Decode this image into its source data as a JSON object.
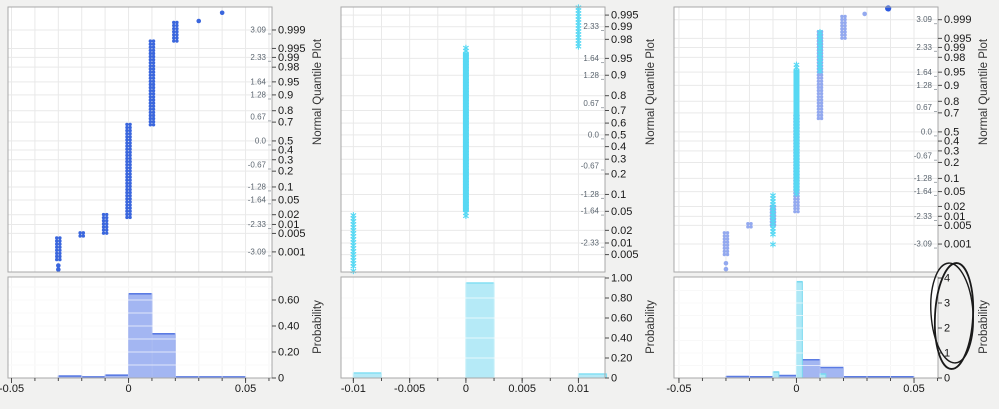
{
  "figure": {
    "background": "#f1f1f0",
    "plot_background": "#ffffff",
    "frame_color": "#a8a8a8",
    "grid_color": "#e9e9e9",
    "tick_color": "#4a4a4a",
    "label_color": "#161616",
    "z_label_color": "#5c6670",
    "title_color": "#333333"
  },
  "chart_data": [
    {
      "type": "scatter",
      "title": "Normal Quantile Plot",
      "hist_ylabel": "Probability",
      "xlim": [
        -0.0515,
        0.0613
      ],
      "zlim": [
        -3.65,
        3.73
      ],
      "x_tick_values": [
        -0.05,
        0,
        0.05
      ],
      "x_tick_labels": [
        "-0.05",
        "0",
        "0.05"
      ],
      "x_minor_step": 0.01,
      "prob_labels": [
        "0.999",
        "0.995",
        "0.99",
        "0.98",
        "0.95",
        "0.9",
        "0.8",
        "0.7",
        "0.5",
        "0.4",
        "0.3",
        "0.2",
        "0.1",
        "0.05",
        "0.02",
        "0.01",
        "0.005",
        "0.001"
      ],
      "prob_z": [
        3.09,
        2.576,
        2.326,
        2.054,
        1.645,
        1.282,
        0.842,
        0.524,
        0,
        -0.253,
        -0.524,
        -0.842,
        -1.282,
        -1.645,
        -2.054,
        -2.326,
        -2.576,
        -3.09
      ],
      "z_labels": [
        "3.09",
        "2.33",
        "1.64",
        "1.28",
        "0.67",
        "0.0",
        "-0.67",
        "-1.28",
        "-1.64",
        "-2.33",
        "-3.09"
      ],
      "z_values": [
        3.09,
        2.33,
        1.64,
        1.28,
        0.67,
        0,
        -0.67,
        -1.28,
        -1.64,
        -2.33,
        -3.09
      ],
      "series": [
        {
          "name": "blue-dots",
          "marker": "dot",
          "color": "#3a66dd",
          "columns": [
            {
              "x": 0.0,
              "z": [
                -2.18,
                0.46
              ]
            },
            {
              "x": 0.01,
              "z": [
                0.4,
                2.78
              ]
            },
            {
              "x": 0.02,
              "z": [
                2.72,
                3.3
              ]
            },
            {
              "x": -0.01,
              "z": [
                -2.62,
                -2.05
              ]
            },
            {
              "x": -0.02,
              "z": [
                -2.73,
                -2.56
              ]
            },
            {
              "x": -0.03,
              "z": [
                -3.37,
                -2.7
              ]
            }
          ],
          "points": [
            {
              "x": 0.03,
              "z": 3.34
            },
            {
              "x": 0.04,
              "z": 3.57
            },
            {
              "x": -0.03,
              "z": -3.47
            },
            {
              "x": -0.03,
              "z": -3.58
            }
          ]
        }
      ],
      "histogram": {
        "ylim": [
          0,
          0.777
        ],
        "y_tick_values": [
          0,
          0.2,
          0.4,
          0.6
        ],
        "y_tick_labels": [
          "0",
          "0.20",
          "0.40",
          "0.60"
        ],
        "y_minor_step": 0.1,
        "series": [
          {
            "name": "blue-hist",
            "fill": "#a3b6f2",
            "edge": "#5b7be3",
            "bars": [
              {
                "x0": -0.03,
                "x1": -0.02,
                "h": 0.015
              },
              {
                "x0": -0.02,
                "x1": -0.01,
                "h": 0.008
              },
              {
                "x0": -0.01,
                "x1": 0.0,
                "h": 0.022
              },
              {
                "x0": 0.0,
                "x1": 0.01,
                "h": 0.648
              },
              {
                "x0": 0.01,
                "x1": 0.02,
                "h": 0.34
              },
              {
                "x0": 0.02,
                "x1": 0.03,
                "h": 0.008
              },
              {
                "x0": 0.03,
                "x1": 0.04,
                "h": 0.008
              },
              {
                "x0": 0.04,
                "x1": 0.05,
                "h": 0.008
              }
            ]
          }
        ]
      }
    },
    {
      "type": "scatter",
      "title": "Normal Quantile Plot",
      "hist_ylabel": "Probability",
      "xlim": [
        -0.0111,
        0.01236
      ],
      "zlim": [
        -2.95,
        2.75
      ],
      "x_tick_values": [
        -0.01,
        -0.005,
        0,
        0.005,
        0.01
      ],
      "x_tick_labels": [
        "-0.01",
        "-0.005",
        "0",
        "0.005",
        "0.01"
      ],
      "x_minor_step": 0.0025,
      "prob_labels": [
        "0.995",
        "0.99",
        "0.98",
        "0.95",
        "0.9",
        "0.8",
        "0.7",
        "0.6",
        "0.5",
        "0.4",
        "0.3",
        "0.2",
        "0.1",
        "0.05",
        "0.02",
        "0.01",
        "0.005"
      ],
      "prob_z": [
        2.576,
        2.326,
        2.054,
        1.645,
        1.282,
        0.842,
        0.524,
        0.253,
        0,
        -0.253,
        -0.524,
        -0.842,
        -1.282,
        -1.645,
        -2.054,
        -2.326,
        -2.576
      ],
      "z_labels": [
        "2.33",
        "1.64",
        "1.28",
        "0.67",
        "0.0",
        "-0.67",
        "-1.28",
        "-1.64",
        "-2.33"
      ],
      "z_values": [
        2.33,
        1.64,
        1.28,
        0.67,
        0,
        -0.67,
        -1.28,
        -1.64,
        -2.33
      ],
      "series": [
        {
          "name": "cyan-stars",
          "marker": "star",
          "color": "#57d8f3",
          "columns": [
            {
              "x": 0.0,
              "z": [
                -1.76,
                1.87
              ],
              "core": true
            },
            {
              "x": 0.01,
              "z": [
                1.84,
                2.74
              ]
            },
            {
              "x": -0.01,
              "z": [
                -2.85,
                -1.73
              ]
            }
          ],
          "points": [
            {
              "x": -0.01,
              "z": -2.93
            }
          ]
        }
      ],
      "histogram": {
        "ylim": [
          0,
          1.01
        ],
        "y_tick_values": [
          0,
          0.2,
          0.4,
          0.6,
          0.8,
          1.0
        ],
        "y_tick_labels": [
          "0",
          "0.20",
          "0.40",
          "0.60",
          "0.80",
          "1.00"
        ],
        "y_minor_step": 0.2,
        "series": [
          {
            "name": "cyan-hist",
            "fill": "#b5eaf7",
            "edge": "#84dff4",
            "bars": [
              {
                "x0": -0.01,
                "x1": -0.0075,
                "h": 0.05
              },
              {
                "x0": 0.0,
                "x1": 0.0025,
                "h": 0.95
              },
              {
                "x0": 0.01,
                "x1": 0.0125,
                "h": 0.04
              }
            ]
          }
        ]
      }
    },
    {
      "type": "scatter",
      "title": "Normal Quantile Plot",
      "hist_ylabel": "Probability",
      "xlim": [
        -0.0521,
        0.0602
      ],
      "zlim": [
        -3.86,
        3.44
      ],
      "x_tick_values": [
        -0.05,
        0,
        0.05
      ],
      "x_tick_labels": [
        "-0.05",
        "0",
        "0.05"
      ],
      "x_minor_step": 0.01,
      "prob_labels": [
        "0.999",
        "0.995",
        "0.99",
        "0.98",
        "0.95",
        "0.9",
        "0.8",
        "0.7",
        "0.5",
        "0.4",
        "0.3",
        "0.2",
        "0.1",
        "0.05",
        "0.02",
        "0.01",
        "0.005",
        "0.001"
      ],
      "prob_z": [
        3.09,
        2.576,
        2.326,
        2.054,
        1.645,
        1.282,
        0.842,
        0.524,
        0,
        -0.253,
        -0.524,
        -0.842,
        -1.282,
        -1.645,
        -2.054,
        -2.326,
        -2.576,
        -3.09
      ],
      "z_labels": [
        "3.09",
        "2.33",
        "1.64",
        "1.28",
        "0.67",
        "0.0",
        "-0.67",
        "-1.28",
        "-1.64",
        "-2.33",
        "-3.09"
      ],
      "z_values": [
        3.09,
        2.33,
        1.64,
        1.28,
        0.67,
        0,
        -0.67,
        -1.28,
        -1.64,
        -2.33,
        -3.09
      ],
      "series": [
        {
          "name": "periwinkle-dots",
          "marker": "dot",
          "color": "#93a9ef",
          "columns": [
            {
              "x": 0.0,
              "z": [
                -2.2,
                0.45
              ]
            },
            {
              "x": 0.01,
              "z": [
                0.3,
                2.76
              ]
            },
            {
              "x": 0.02,
              "z": [
                2.52,
                3.18
              ]
            },
            {
              "x": -0.01,
              "z": [
                -2.6,
                -2.05
              ]
            },
            {
              "x": -0.02,
              "z": [
                -2.7,
                -2.53
              ]
            },
            {
              "x": -0.03,
              "z": [
                -3.45,
                -2.78
              ]
            }
          ],
          "points": [
            {
              "x": 0.029,
              "z": 3.25
            },
            {
              "x": -0.03,
              "z": -3.62
            },
            {
              "x": -0.03,
              "z": -3.78
            }
          ]
        },
        {
          "name": "cyan-stars",
          "marker": "star",
          "color": "#57d8f3",
          "columns": [
            {
              "x": 0.0,
              "z": [
                -1.76,
                1.85
              ],
              "core": true
            },
            {
              "x": 0.01,
              "z": [
                1.62,
                2.75
              ]
            },
            {
              "x": -0.01,
              "z": [
                -2.88,
                -1.75
              ]
            }
          ],
          "points": [
            {
              "x": -0.01,
              "z": -3.1
            }
          ]
        },
        {
          "name": "dark-blue-outlier",
          "marker": "dot-large",
          "color": "#2b59e0",
          "columns": [],
          "points": [
            {
              "x": 0.039,
              "z": 3.4
            }
          ]
        }
      ],
      "histogram": {
        "ylim": [
          0,
          4.04
        ],
        "y_tick_values": [
          0,
          1,
          2,
          3,
          4
        ],
        "y_tick_labels": [
          "0",
          "1",
          "2",
          "3",
          "4"
        ],
        "y_minor_step": 0.5,
        "series": [
          {
            "name": "periwinkle-hist",
            "fill": "#a3b6f2",
            "edge": "#5b7be3",
            "bars": [
              {
                "x0": -0.03,
                "x1": -0.02,
                "h": 0.06
              },
              {
                "x0": -0.02,
                "x1": -0.01,
                "h": 0.05
              },
              {
                "x0": -0.01,
                "x1": 0.0,
                "h": 0.1
              },
              {
                "x0": 0.0,
                "x1": 0.01,
                "h": 0.73
              },
              {
                "x0": 0.01,
                "x1": 0.02,
                "h": 0.42
              },
              {
                "x0": 0.02,
                "x1": 0.03,
                "h": 0.05
              },
              {
                "x0": 0.03,
                "x1": 0.04,
                "h": 0.05
              },
              {
                "x0": 0.04,
                "x1": 0.05,
                "h": 0.05
              }
            ]
          },
          {
            "name": "cyan-hist",
            "fill": "#aee8f6",
            "edge": "#7adaf0",
            "bars": [
              {
                "x0": -0.01,
                "x1": -0.0075,
                "h": 0.24
              },
              {
                "x0": 0.0,
                "x1": 0.0025,
                "h": 3.85
              },
              {
                "x0": 0.01,
                "x1": 0.0125,
                "h": 0.16
              }
            ]
          }
        ]
      },
      "annotation": {
        "type": "hand-drawn-ellipse",
        "color": "#1a1a1a",
        "around": "histogram probability axis labels 0-4"
      }
    }
  ]
}
